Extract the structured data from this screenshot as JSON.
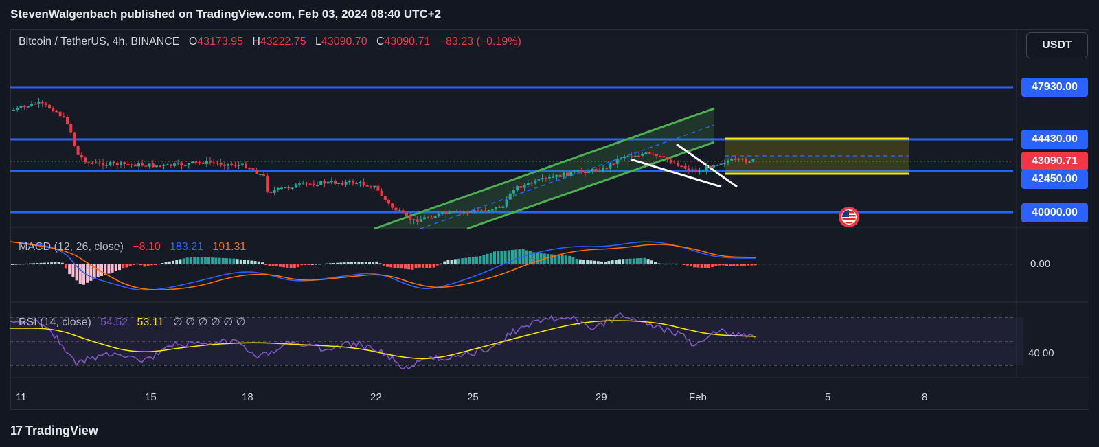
{
  "header": {
    "publisher_line": "StevenWalgenbach published on TradingView.com, Feb 03, 2024 08:40 UTC+2"
  },
  "symbol": {
    "name": "Bitcoin / TetherUS, 4h, BINANCE",
    "open_label": "O",
    "open": "43173.95",
    "high_label": "H",
    "high": "43222.75",
    "low_label": "L",
    "low": "43090.70",
    "close_label": "C",
    "close": "43090.71",
    "change": "−83.23 (−0.19%)",
    "currency_button": "USDT"
  },
  "price_levels": [
    {
      "value": "47930.00",
      "color": "#2962ff"
    },
    {
      "value": "44430.00",
      "color": "#2962ff"
    },
    {
      "value": "43090.71",
      "color": "#f23645"
    },
    {
      "value": "42450.00",
      "color": "#2962ff"
    },
    {
      "value": "40000.00",
      "color": "#2962ff"
    }
  ],
  "macd": {
    "label": "MACD (12, 26, close)",
    "v1": "−8.10",
    "v2": "183.21",
    "v3": "191.31",
    "zero_label": "0.00"
  },
  "rsi": {
    "label": "RSI (14, close)",
    "v1": "54.52",
    "v2": "53.11",
    "empties": "∅ ∅ ∅ ∅ ∅ ∅",
    "level_label": "40.00"
  },
  "time_axis": [
    "11",
    "15",
    "18",
    "22",
    "25",
    "29",
    "Feb",
    "5",
    "8"
  ],
  "footer": {
    "brand": "TradingView",
    "brand_mark": "17"
  },
  "colors": {
    "background": "#131722",
    "up": "#26a69a",
    "down": "#f23645",
    "level": "#2962ff",
    "channel": "#4caf50",
    "box": "#f7e600"
  },
  "icons": {
    "event": "us-flag-icon"
  }
}
